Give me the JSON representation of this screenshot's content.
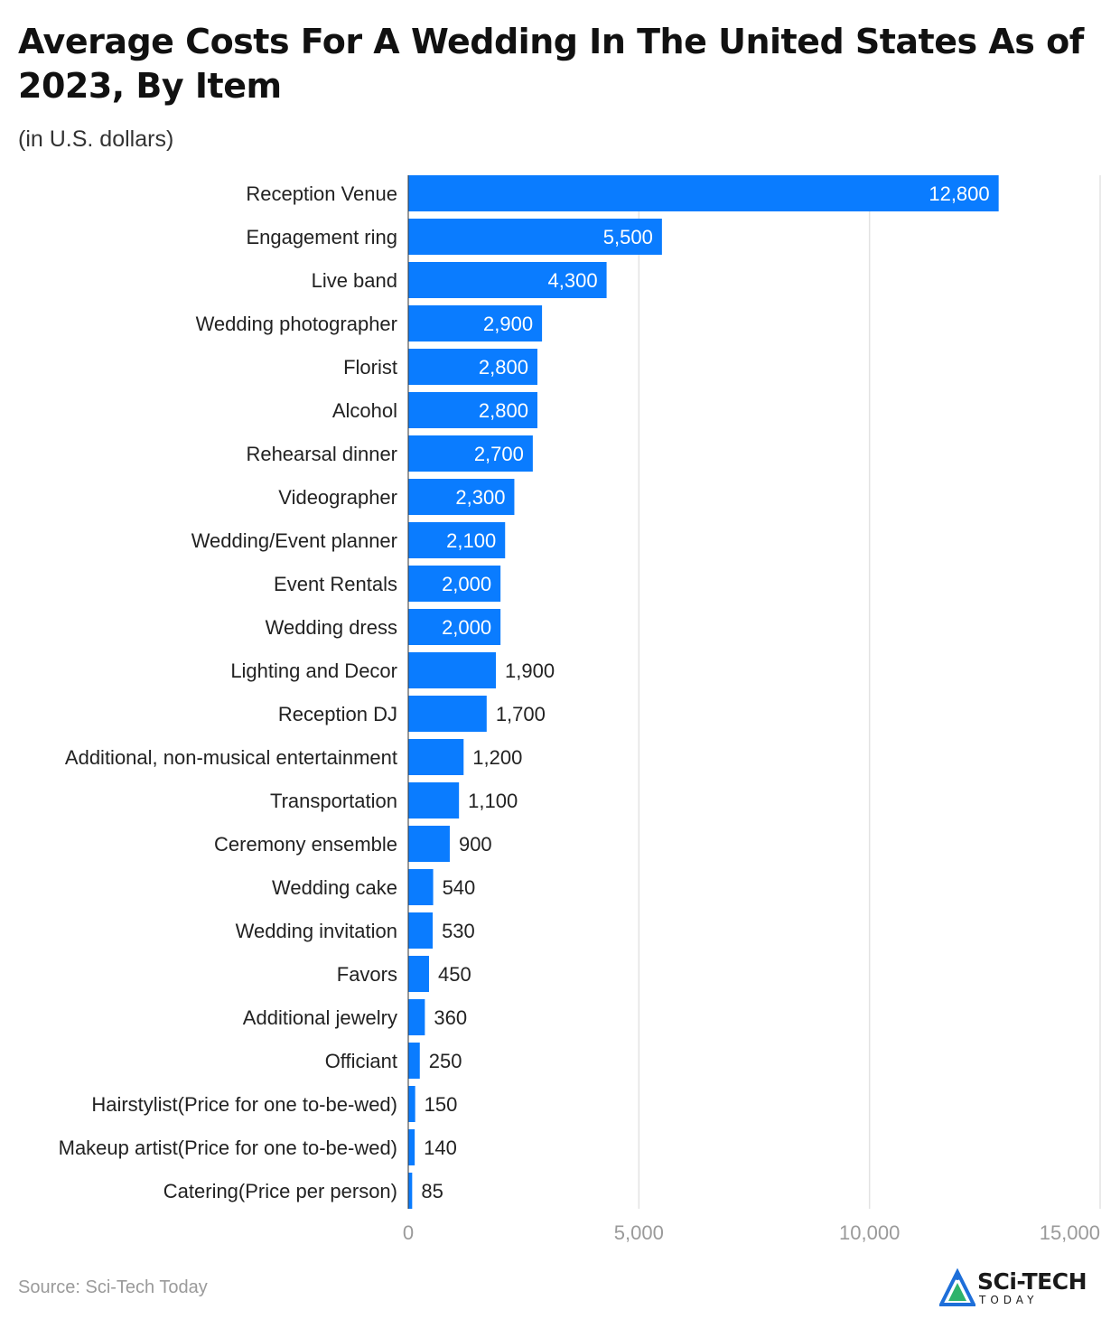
{
  "title": "Average Costs For A Wedding In The United States As of 2023, By Item",
  "subtitle": "(in U.S. dollars)",
  "source": "Source: Sci-Tech Today",
  "logo": {
    "text": "SCi-TECH",
    "sub": "TODAY",
    "icon": "sci-tech-logo-icon"
  },
  "colors": {
    "bar": "#0a7cff",
    "grid": "#e3e3e3",
    "axis_text": "#9a9a9a"
  },
  "chart_data": {
    "type": "bar",
    "orientation": "horizontal",
    "categories": [
      "Reception Venue",
      "Engagement ring",
      "Live band",
      "Wedding photographer",
      "Florist",
      "Alcohol",
      "Rehearsal dinner",
      "Videographer",
      "Wedding/Event planner",
      "Event Rentals",
      "Wedding dress",
      "Lighting and Decor",
      "Reception DJ",
      "Additional, non-musical entertainment",
      "Transportation",
      "Ceremony ensemble",
      "Wedding cake",
      "Wedding invitation",
      "Favors",
      "Additional jewelry",
      "Officiant",
      "Hairstylist(Price for one to-be-wed)",
      "Makeup artist(Price for one to-be-wed)",
      "Catering(Price per person)"
    ],
    "values": [
      12800,
      5500,
      4300,
      2900,
      2800,
      2800,
      2700,
      2300,
      2100,
      2000,
      2000,
      1900,
      1700,
      1200,
      1100,
      900,
      540,
      530,
      450,
      360,
      250,
      150,
      140,
      85
    ],
    "value_labels": [
      "12,800",
      "5,500",
      "4,300",
      "2,900",
      "2,800",
      "2,800",
      "2,700",
      "2,300",
      "2,100",
      "2,000",
      "2,000",
      "1,900",
      "1,700",
      "1,200",
      "1,100",
      "900",
      "540",
      "530",
      "450",
      "360",
      "250",
      "150",
      "140",
      "85"
    ],
    "xlim": [
      0,
      15000
    ],
    "xticks": [
      0,
      5000,
      10000,
      15000
    ],
    "xtick_labels": [
      "0",
      "5,000",
      "10,000",
      "15,000"
    ],
    "grid": true,
    "legend": "none"
  }
}
